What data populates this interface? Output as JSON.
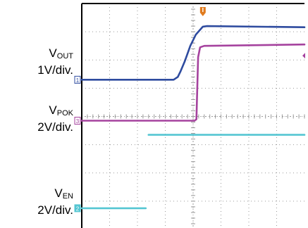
{
  "labels": [
    {
      "name": "V",
      "sub": "OUT",
      "scale": "1V/div."
    },
    {
      "name": "V",
      "sub": "POK",
      "scale": "2V/div."
    },
    {
      "name": "V",
      "sub": "EN",
      "scale": "2V/div."
    }
  ],
  "colors": {
    "background": "#ffffff",
    "grid_frame": "#000000",
    "grid_minor": "#9a9a9a",
    "vout": "#2e4b9f",
    "vpok": "#a5429e",
    "ven": "#55c6d2",
    "trigger": "#e07b1e"
  },
  "chart_data": {
    "type": "line",
    "grid": true,
    "divisions": {
      "x": 8,
      "y": 8
    },
    "x_range_div": [
      0,
      8
    ],
    "y_range_div": [
      0,
      8
    ],
    "trigger_marker": {
      "x_div": 4.35,
      "color": "#e07b1e"
    },
    "series": [
      {
        "name": "VOUT",
        "channel_marker": "1",
        "color": "#2e4b9f",
        "points": [
          [
            0,
            5.3
          ],
          [
            3.3,
            5.3
          ],
          [
            3.45,
            5.4
          ],
          [
            3.55,
            5.6
          ],
          [
            3.7,
            5.95
          ],
          [
            3.9,
            6.5
          ],
          [
            4.1,
            6.9
          ],
          [
            4.35,
            7.18
          ],
          [
            4.5,
            7.2
          ],
          [
            8,
            7.16
          ]
        ]
      },
      {
        "name": "VPOK",
        "channel_marker": "3",
        "color": "#a5429e",
        "points": [
          [
            0,
            3.85
          ],
          [
            4.05,
            3.85
          ],
          [
            4.12,
            3.9
          ],
          [
            4.18,
            6.1
          ],
          [
            4.25,
            6.45
          ],
          [
            4.4,
            6.5
          ],
          [
            8,
            6.55
          ]
        ]
      },
      {
        "name": "VEN",
        "channel_marker": "2",
        "color": "#55c6d2",
        "segments": [
          [
            [
              0,
              0.75
            ],
            [
              2.3,
              0.75
            ]
          ],
          [
            [
              2.4,
              3.35
            ],
            [
              8,
              3.35
            ]
          ]
        ]
      }
    ]
  }
}
